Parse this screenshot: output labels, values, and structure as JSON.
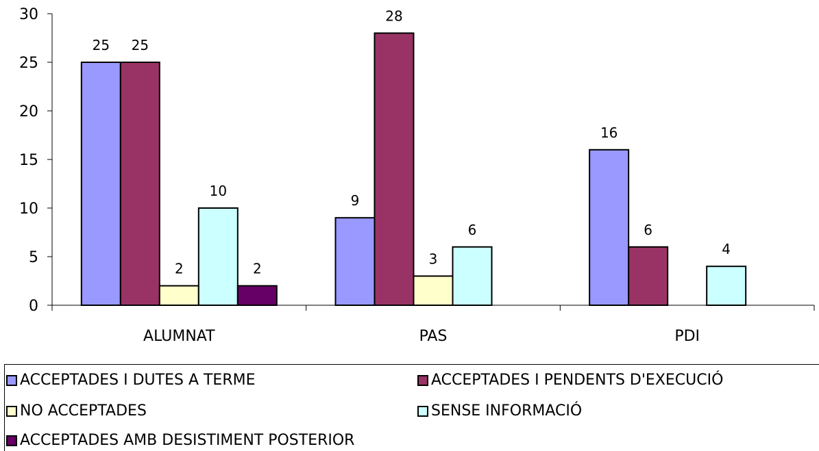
{
  "chart_data": {
    "type": "bar",
    "title": "",
    "xlabel": "",
    "ylabel": "",
    "categories": [
      "ALUMNAT",
      "PAS",
      "PDI"
    ],
    "ylim": [
      0,
      30
    ],
    "yticks": [
      "0",
      "5",
      "10",
      "15",
      "20",
      "25",
      "30"
    ],
    "grid": false,
    "legend_position": "bottom",
    "series": [
      {
        "name": "ACCEPTADES I DUTES A TERME",
        "color": "#9999ff",
        "values": [
          25,
          9,
          16
        ]
      },
      {
        "name": "ACCEPTADES I PENDENTS D'EXECUCIÓ",
        "color": "#993366",
        "values": [
          25,
          28,
          6
        ]
      },
      {
        "name": "NO ACCEPTADES",
        "color": "#ffffcc",
        "values": [
          2,
          3,
          null
        ]
      },
      {
        "name": "SENSE INFORMACIÓ",
        "color": "#ccffff",
        "values": [
          10,
          6,
          4
        ]
      },
      {
        "name": "ACCEPTADES AMB DESISTIMENT POSTERIOR",
        "color": "#660066",
        "values": [
          2,
          null,
          null
        ]
      }
    ]
  }
}
